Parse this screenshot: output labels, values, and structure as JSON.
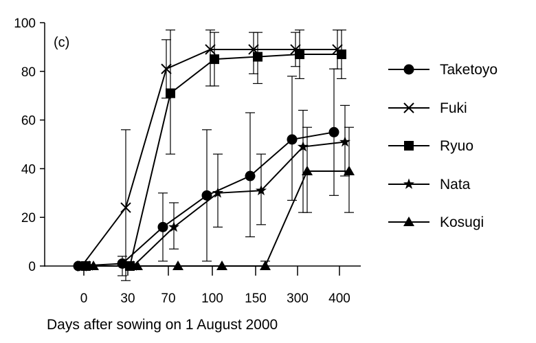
{
  "chart_data": {
    "type": "line",
    "panel_label": "(c)",
    "xlabel": "Days after sowing on 1 August 2000",
    "ylabel": "",
    "categories": [
      "0",
      "30",
      "70",
      "100",
      "150",
      "300",
      "400"
    ],
    "ylim": [
      0,
      100
    ],
    "yticks": [
      0,
      20,
      40,
      60,
      80,
      100
    ],
    "grid": false,
    "legend_position": "right",
    "series": [
      {
        "name": "Taketoyo",
        "marker": "circle",
        "values": [
          0,
          1,
          16,
          29,
          37,
          52,
          55
        ],
        "err_low": [
          0,
          5,
          14,
          27,
          25,
          25,
          26
        ],
        "err_high": [
          0,
          3,
          14,
          27,
          26,
          26,
          26
        ]
      },
      {
        "name": "Fuki",
        "marker": "x",
        "values": [
          0,
          24,
          81,
          89,
          89,
          89,
          89
        ],
        "err_low": [
          0,
          30,
          12,
          15,
          10,
          7,
          8
        ],
        "err_high": [
          0,
          32,
          12,
          8,
          7,
          7,
          8
        ]
      },
      {
        "name": "Ryuo",
        "marker": "square",
        "values": [
          0,
          0,
          71,
          85,
          86,
          87,
          87
        ],
        "err_low": [
          0,
          0,
          25,
          11,
          11,
          10,
          10
        ],
        "err_high": [
          0,
          0,
          26,
          11,
          10,
          10,
          10
        ]
      },
      {
        "name": "Nata",
        "marker": "star",
        "values": [
          0,
          0,
          16,
          30,
          31,
          49,
          51
        ],
        "err_low": [
          0,
          0,
          9,
          14,
          14,
          27,
          14
        ],
        "err_high": [
          0,
          0,
          10,
          16,
          15,
          15,
          15
        ]
      },
      {
        "name": "Kosugi",
        "marker": "triangle",
        "values": [
          0,
          0,
          0,
          0,
          0,
          39,
          39
        ],
        "err_low": [
          0,
          0,
          0,
          0,
          0,
          17,
          17
        ],
        "err_high": [
          0,
          0,
          0,
          0,
          2,
          18,
          18
        ]
      }
    ]
  }
}
